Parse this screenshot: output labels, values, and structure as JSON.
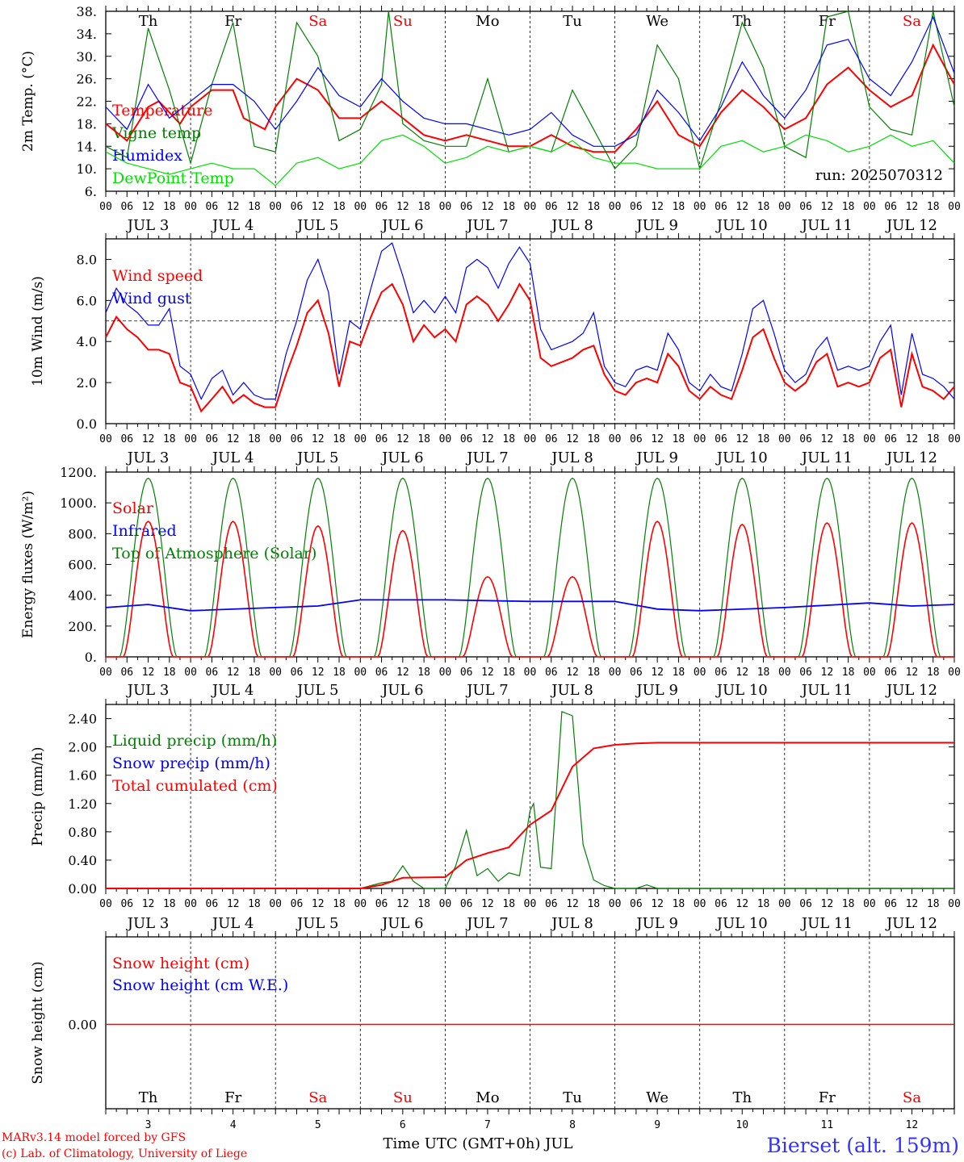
{
  "chart_data": [
    {
      "id": "temp",
      "type": "line",
      "ylabel": "2m Temp. (°C)",
      "ylim": [
        6,
        38
      ],
      "yticks": [
        "6.",
        "10.",
        "14.",
        "18.",
        "22.",
        "26.",
        "30.",
        "34.",
        "38."
      ],
      "annotation": "run: 2025070312",
      "x_unit": "hours since JUL 3 00 UTC",
      "legend": [
        {
          "name": "Temperature",
          "color": "#ff0000"
        },
        {
          "name": "Vigne temp",
          "color": "#008000"
        },
        {
          "name": "Humidex",
          "color": "#0000ff"
        },
        {
          "name": "DewPoint Temp",
          "color": "#00e000"
        }
      ],
      "series": [
        {
          "name": "Temperature",
          "color": "#ff0000",
          "x": [
            0,
            6,
            12,
            15,
            21,
            24,
            30,
            36,
            39,
            45,
            48,
            54,
            60,
            66,
            72,
            78,
            84,
            90,
            96,
            102,
            108,
            114,
            120,
            126,
            132,
            138,
            144,
            150,
            156,
            162,
            168,
            174,
            180,
            186,
            192,
            198,
            204,
            210,
            216,
            222,
            228,
            234,
            240
          ],
          "y": [
            18,
            15,
            21,
            22,
            18,
            21,
            24,
            24,
            19,
            17,
            21,
            26,
            24,
            19,
            19,
            22,
            19,
            16,
            15,
            16,
            15,
            14,
            14,
            16,
            14,
            13,
            13,
            17,
            22,
            16,
            14,
            20,
            24,
            21,
            17,
            19,
            25,
            28,
            24,
            21,
            23,
            32,
            25
          ]
        },
        {
          "name": "Vigne temp",
          "color": "#008000",
          "x": [
            0,
            6,
            12,
            18,
            24,
            30,
            36,
            42,
            48,
            54,
            60,
            66,
            72,
            78,
            80,
            84,
            90,
            96,
            102,
            108,
            114,
            120,
            126,
            132,
            138,
            144,
            150,
            156,
            162,
            168,
            174,
            180,
            186,
            192,
            198,
            204,
            210,
            216,
            222,
            228,
            234,
            240
          ],
          "y": [
            14,
            12,
            35,
            24,
            11,
            25,
            36,
            14,
            13,
            36,
            30,
            15,
            17,
            25,
            38,
            18,
            15,
            14,
            14,
            26,
            13,
            14,
            13,
            24,
            17,
            10,
            14,
            32,
            26,
            10,
            22,
            36,
            28,
            14,
            12,
            37,
            38,
            21,
            17,
            16,
            38,
            21
          ]
        },
        {
          "name": "Humidex",
          "color": "#0000ff",
          "x": [
            0,
            6,
            12,
            18,
            24,
            30,
            36,
            42,
            48,
            54,
            60,
            66,
            72,
            78,
            84,
            90,
            96,
            102,
            108,
            114,
            120,
            126,
            132,
            138,
            144,
            150,
            156,
            162,
            168,
            174,
            180,
            186,
            192,
            198,
            204,
            210,
            216,
            222,
            228,
            234,
            240
          ],
          "y": [
            21,
            17,
            25,
            19,
            22,
            25,
            25,
            22,
            17,
            22,
            28,
            23,
            21,
            26,
            22,
            19,
            18,
            18,
            17,
            16,
            17,
            20,
            16,
            14,
            14,
            16,
            24,
            20,
            15,
            21,
            29,
            23,
            19,
            24,
            32,
            33,
            26,
            23,
            29,
            37,
            27
          ]
        },
        {
          "name": "DewPoint Temp",
          "color": "#00e000",
          "x": [
            0,
            6,
            12,
            18,
            24,
            30,
            36,
            42,
            48,
            54,
            60,
            66,
            72,
            78,
            84,
            90,
            96,
            102,
            108,
            114,
            120,
            126,
            132,
            138,
            144,
            150,
            156,
            162,
            168,
            174,
            180,
            186,
            192,
            198,
            204,
            210,
            216,
            222,
            228,
            234,
            240
          ],
          "y": [
            13,
            11,
            10,
            9,
            10,
            11,
            10,
            10,
            7,
            11,
            12,
            10,
            11,
            15,
            16,
            14,
            11,
            12,
            14,
            13,
            14,
            13,
            15,
            12,
            11,
            11,
            10,
            10,
            10,
            14,
            15,
            13,
            14,
            16,
            15,
            13,
            14,
            16,
            14,
            15,
            11
          ]
        }
      ]
    },
    {
      "id": "wind",
      "type": "line",
      "ylabel": "10m Wind (m/s)",
      "ylim": [
        0,
        9
      ],
      "yticks": [
        "0.0",
        "2.0",
        "4.0",
        "6.0",
        "8.0"
      ],
      "reference_line": 5.0,
      "legend": [
        {
          "name": "Wind speed",
          "color": "#ff0000"
        },
        {
          "name": "Wind gust",
          "color": "#0000ff"
        }
      ],
      "series": [
        {
          "name": "Wind speed",
          "color": "#ff0000",
          "x": [
            0,
            3,
            6,
            9,
            12,
            15,
            18,
            21,
            24,
            27,
            30,
            33,
            36,
            39,
            42,
            45,
            48,
            51,
            54,
            57,
            60,
            63,
            66,
            69,
            72,
            75,
            78,
            81,
            84,
            87,
            90,
            93,
            96,
            99,
            102,
            105,
            108,
            111,
            114,
            117,
            120,
            123,
            126,
            129,
            132,
            135,
            138,
            141,
            144,
            147,
            150,
            153,
            156,
            159,
            162,
            165,
            168,
            171,
            174,
            177,
            180,
            183,
            186,
            189,
            192,
            195,
            198,
            201,
            204,
            207,
            210,
            213,
            216,
            219,
            222,
            225,
            228,
            231,
            234,
            237,
            240
          ],
          "y": [
            4.2,
            5.2,
            4.6,
            4.2,
            3.6,
            3.6,
            3.4,
            2.0,
            1.8,
            0.6,
            1.2,
            1.8,
            1.0,
            1.4,
            1.0,
            0.8,
            0.8,
            2.4,
            3.8,
            5.4,
            6.0,
            4.4,
            1.8,
            4.0,
            3.8,
            5.2,
            6.4,
            6.8,
            5.8,
            4.0,
            4.8,
            4.2,
            4.6,
            4.0,
            5.8,
            6.2,
            5.8,
            5.0,
            5.8,
            6.8,
            6.0,
            3.2,
            2.8,
            3.0,
            3.2,
            3.6,
            3.8,
            2.4,
            1.6,
            1.4,
            2.0,
            2.2,
            2.0,
            3.4,
            2.8,
            1.6,
            1.2,
            1.8,
            1.4,
            1.2,
            2.6,
            4.2,
            4.6,
            3.2,
            2.0,
            1.6,
            2.0,
            3.0,
            3.4,
            1.8,
            2.0,
            1.8,
            2.0,
            3.2,
            3.6,
            0.8,
            3.4,
            1.8,
            1.6,
            1.2,
            1.8
          ]
        },
        {
          "name": "Wind gust",
          "color": "#0000ff",
          "x": [
            0,
            3,
            6,
            9,
            12,
            15,
            18,
            21,
            24,
            27,
            30,
            33,
            36,
            39,
            42,
            45,
            48,
            51,
            54,
            57,
            60,
            63,
            66,
            69,
            72,
            75,
            78,
            81,
            84,
            87,
            90,
            93,
            96,
            99,
            102,
            105,
            108,
            111,
            114,
            117,
            120,
            123,
            126,
            129,
            132,
            135,
            138,
            141,
            144,
            147,
            150,
            153,
            156,
            159,
            162,
            165,
            168,
            171,
            174,
            177,
            180,
            183,
            186,
            189,
            192,
            195,
            198,
            201,
            204,
            207,
            210,
            213,
            216,
            219,
            222,
            225,
            228,
            231,
            234,
            237,
            240
          ],
          "y": [
            5.4,
            6.6,
            5.8,
            5.4,
            4.8,
            4.8,
            5.6,
            2.8,
            2.4,
            1.2,
            2.2,
            2.6,
            1.4,
            2.0,
            1.4,
            1.2,
            1.2,
            3.4,
            5.0,
            7.0,
            8.0,
            6.4,
            2.4,
            5.0,
            4.6,
            6.6,
            8.4,
            8.8,
            7.2,
            5.4,
            6.0,
            5.4,
            6.2,
            5.4,
            7.6,
            8.0,
            7.6,
            6.6,
            7.8,
            8.6,
            7.8,
            4.6,
            3.6,
            3.8,
            4.0,
            4.4,
            5.4,
            2.8,
            2.0,
            1.8,
            2.6,
            2.8,
            2.6,
            4.4,
            3.6,
            2.0,
            1.6,
            2.4,
            1.8,
            1.6,
            3.4,
            5.6,
            6.0,
            4.4,
            2.6,
            2.0,
            2.4,
            3.6,
            4.2,
            2.6,
            2.8,
            2.6,
            2.8,
            4.0,
            4.8,
            1.4,
            4.4,
            2.4,
            2.2,
            1.8,
            1.2
          ]
        }
      ]
    },
    {
      "id": "energy",
      "type": "line",
      "ylabel": "Energy fluxes (W/m²)",
      "ylim": [
        0,
        1200
      ],
      "yticks": [
        "0.",
        "200.",
        "400.",
        "600.",
        "800.",
        "1000.",
        "1200."
      ],
      "legend": [
        {
          "name": "Solar",
          "color": "#ff0000"
        },
        {
          "name": "Infrared",
          "color": "#0000ff"
        },
        {
          "name": "Top of Atmosphere (Solar)",
          "color": "#008000"
        }
      ],
      "toa_peak": 1160,
      "solar_peaks": [
        880,
        880,
        850,
        820,
        520,
        520,
        880,
        860,
        870,
        870
      ],
      "infrared": {
        "x": [
          0,
          12,
          24,
          48,
          60,
          72,
          96,
          120,
          144,
          156,
          168,
          192,
          216,
          228,
          240
        ],
        "y": [
          320,
          340,
          300,
          320,
          330,
          370,
          370,
          360,
          360,
          310,
          300,
          320,
          350,
          330,
          340
        ]
      }
    },
    {
      "id": "precip",
      "type": "line",
      "ylabel": "Precip (mm/h)",
      "ylim": [
        0,
        2.6
      ],
      "yticks": [
        "0.00",
        "0.40",
        "0.80",
        "1.20",
        "1.60",
        "2.00",
        "2.40"
      ],
      "legend": [
        {
          "name": "Liquid precip (mm/h)",
          "color": "#008000"
        },
        {
          "name": "Snow precip (mm/h)",
          "color": "#0000ff"
        },
        {
          "name": "Total cumulated (cm)",
          "color": "#ff0000"
        }
      ],
      "series": [
        {
          "name": "Liquid precip (mm/h)",
          "color": "#008000",
          "x": [
            0,
            72,
            78,
            81,
            84,
            87,
            90,
            96,
            99,
            102,
            105,
            108,
            111,
            114,
            117,
            120,
            121,
            123,
            126,
            129,
            132,
            135,
            138,
            141,
            144,
            147,
            150,
            153,
            156,
            240
          ],
          "y": [
            0,
            0,
            0.08,
            0.1,
            0.32,
            0.1,
            0,
            0,
            0.32,
            0.82,
            0.18,
            0.28,
            0.1,
            0.22,
            0.18,
            1.1,
            1.2,
            0.3,
            0.28,
            2.5,
            2.44,
            0.62,
            0.12,
            0.04,
            0,
            0,
            0,
            0.05,
            0,
            0
          ]
        },
        {
          "name": "Total cumulated (cm)",
          "color": "#ff0000",
          "x": [
            0,
            72,
            78,
            84,
            96,
            102,
            108,
            114,
            120,
            126,
            132,
            138,
            144,
            150,
            156,
            240
          ],
          "y": [
            0,
            0,
            0.05,
            0.15,
            0.16,
            0.4,
            0.5,
            0.58,
            0.9,
            1.1,
            1.72,
            1.98,
            2.03,
            2.05,
            2.06,
            2.06
          ]
        }
      ]
    },
    {
      "id": "snow",
      "type": "line",
      "ylabel": "Snow height (cm)",
      "yticks": [
        "0.00"
      ],
      "legend": [
        {
          "name": "Snow height (cm)",
          "color": "#ff0000"
        },
        {
          "name": "Snow height (cm W.E.)",
          "color": "#0000ff"
        }
      ],
      "series": [
        {
          "name": "Snow height (cm)",
          "color": "#ff0000",
          "x": [
            0,
            240
          ],
          "y": [
            0,
            0
          ]
        }
      ]
    }
  ],
  "days": [
    {
      "name": "Th",
      "date": "JUL  3",
      "num": "3",
      "color": "#000000"
    },
    {
      "name": "Fr",
      "date": "JUL  4",
      "num": "4",
      "color": "#000000"
    },
    {
      "name": "Sa",
      "date": "JUL  5",
      "num": "5",
      "color": "#ff0000"
    },
    {
      "name": "Su",
      "date": "JUL  6",
      "num": "6",
      "color": "#ff0000"
    },
    {
      "name": "Mo",
      "date": "JUL  7",
      "num": "7",
      "color": "#000000"
    },
    {
      "name": "Tu",
      "date": "JUL  8",
      "num": "8",
      "color": "#000000"
    },
    {
      "name": "We",
      "date": "JUL  9",
      "num": "9",
      "color": "#000000"
    },
    {
      "name": "Th",
      "date": "JUL 10",
      "num": "10",
      "color": "#000000"
    },
    {
      "name": "Fr",
      "date": "JUL 11",
      "num": "11",
      "color": "#000000"
    },
    {
      "name": "Sa",
      "date": "JUL 12",
      "num": "12",
      "color": "#ff0000"
    }
  ],
  "hour_labels": [
    "00",
    "06",
    "12",
    "18"
  ],
  "final_hour_label": "00",
  "footer": {
    "model": "MARv3.14 model forced by GFS",
    "copyright": "(c) Lab. of Climatology, University of Liege",
    "xlabel": "Time UTC (GMT+0h) JUL",
    "station": "Bierset (alt. 159m)"
  },
  "colors": {
    "model_text": "#ff0000",
    "station_text": "#3333ff"
  }
}
